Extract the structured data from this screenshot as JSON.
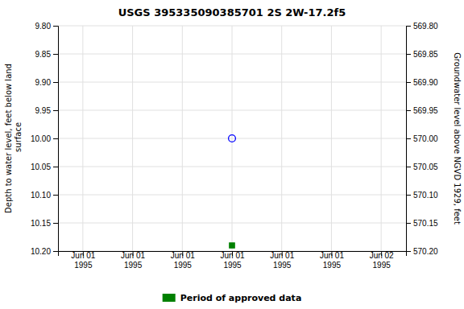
{
  "chart_data": {
    "type": "scatter",
    "title": "USGS 395335090385701  2S 2W-17.2f5",
    "y_label": "Depth to water level, feet below land\n surface",
    "y2_label": "Groundwater level above NGVD 1929, feet",
    "categories": [
      "Jun 01\n1995",
      "Jun 01\n1995",
      "Jun 01\n1995",
      "Jun 01\n1995",
      "Jun 01\n1995",
      "Jun 01\n1995",
      "Jun 02\n1995"
    ],
    "series": [
      {
        "color": "blue",
        "marker": "circle-open",
        "values": [
          null,
          null,
          null,
          10.0,
          null,
          null,
          null
        ]
      },
      {
        "name": "Period of approved data",
        "color": "green",
        "marker": "square",
        "values": [
          null,
          null,
          null,
          10.19,
          null,
          null,
          null
        ]
      }
    ],
    "ylim": [
      10.2,
      9.8
    ],
    "yticks": [
      {
        "value": 9.8,
        "label": "9.80"
      },
      {
        "value": 9.85,
        "label": "9.85"
      },
      {
        "value": 9.9,
        "label": "9.90"
      },
      {
        "value": 9.95,
        "label": "9.95"
      },
      {
        "value": 10.0,
        "label": "10.00"
      },
      {
        "value": 10.05,
        "label": "10.05"
      },
      {
        "value": 10.1,
        "label": "10.10"
      },
      {
        "value": 10.15,
        "label": "10.15"
      },
      {
        "value": 10.2,
        "label": "10.20"
      }
    ],
    "y2lim": [
      570.2,
      569.8
    ],
    "y2ticks": [
      {
        "value": 570.2,
        "label": "570.20"
      },
      {
        "value": 570.15,
        "label": "570.15"
      },
      {
        "value": 570.1,
        "label": "570.10"
      },
      {
        "value": 570.05,
        "label": "570.05"
      },
      {
        "value": 570.0,
        "label": "570.00"
      },
      {
        "value": 569.95,
        "label": "569.95"
      },
      {
        "value": 569.9,
        "label": "569.90"
      },
      {
        "value": 569.85,
        "label": "569.85"
      },
      {
        "value": 569.8,
        "label": "569.80"
      }
    ],
    "grid": true,
    "legend": "bottom"
  }
}
